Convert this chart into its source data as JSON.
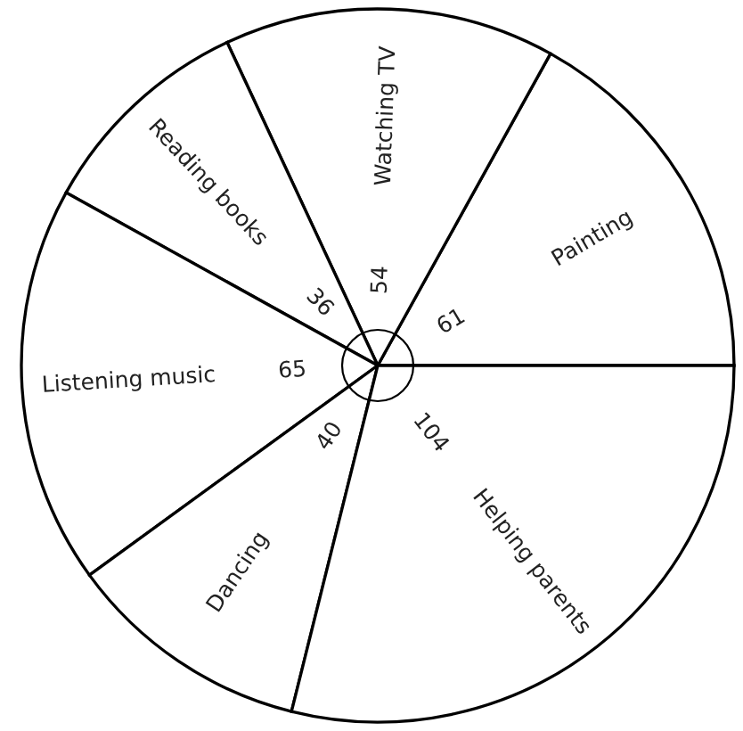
{
  "chart_data": {
    "type": "pie",
    "categories": [
      "Painting",
      "Watching TV",
      "Reading books",
      "Listening music",
      "Dancing",
      "Helping parents"
    ],
    "values": [
      61,
      54,
      36,
      65,
      40,
      104
    ],
    "colors": [
      "#ffffff",
      "#ffffff",
      "#ffffff",
      "#ffffff",
      "#ffffff",
      "#ffffff"
    ],
    "data_labels": true
  }
}
